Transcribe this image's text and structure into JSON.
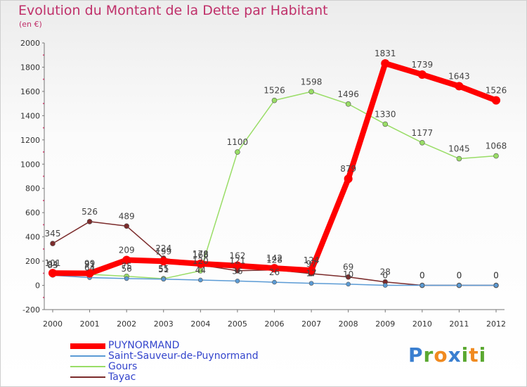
{
  "title": "Evolution du Montant de la Dette par Habitant",
  "subtitle": "(en €)",
  "logo": {
    "letters": [
      "P",
      "r",
      "o",
      "x",
      "i",
      "t",
      "i"
    ],
    "colors": [
      "#3a7fd0",
      "#5aa830",
      "#f08a20",
      "#3a7fd0",
      "#5aa830",
      "#f08a20",
      "#5aa830"
    ]
  },
  "chart_data": {
    "type": "line",
    "x": [
      "2000",
      "2001",
      "2002",
      "2003",
      "2004",
      "2005",
      "2006",
      "2007",
      "2008",
      "2009",
      "2010",
      "2011",
      "2012"
    ],
    "ylim": [
      -200,
      2000
    ],
    "yticks": [
      -200,
      0,
      200,
      400,
      600,
      800,
      1000,
      1200,
      1400,
      1600,
      1800,
      2000
    ],
    "grid": false,
    "legend_position": "bottom-left",
    "series": [
      {
        "name": "PUYNORMAND",
        "color": "#ff0000",
        "width": 8,
        "marker": 6,
        "values": [
          101,
          99,
          209,
          199,
          178,
          162,
          142,
          124,
          879,
          1831,
          1739,
          1643,
          1526
        ],
        "labels": [
          "101",
          "99",
          "209",
          "199",
          "178",
          "162",
          "142",
          "124",
          "879",
          "1831",
          "1739",
          "1643",
          "1526"
        ]
      },
      {
        "name": "Saint-Sauveur-de-Puynormand",
        "color": "#5b9bd5",
        "width": 1.5,
        "marker": 3,
        "values": [
          83,
          64,
          56,
          51,
          44,
          36,
          26,
          17,
          10,
          0,
          0,
          0,
          0
        ],
        "labels": [
          "83",
          "64",
          "56",
          "51",
          "44",
          "36",
          "26",
          "17",
          "10",
          "0",
          "0",
          "0",
          "0"
        ]
      },
      {
        "name": "Gours",
        "color": "#99dd66",
        "width": 1.5,
        "marker": 3.5,
        "values": [
          94,
          91,
          75,
          55,
          120,
          1100,
          1526,
          1598,
          1496,
          1330,
          1177,
          1045,
          1068
        ],
        "labels": [
          "94",
          "91",
          "75",
          "55",
          "120",
          "1100",
          "1526",
          "1598",
          "1496",
          "1330",
          "1177",
          "1045",
          "1068"
        ]
      },
      {
        "name": "Tayac",
        "color": "#7b2b2b",
        "width": 1.5,
        "marker": 3.5,
        "values": [
          345,
          526,
          489,
          224,
          168,
          121,
          128,
          97,
          69,
          28,
          0,
          0,
          0
        ],
        "labels": [
          "345",
          "526",
          "489",
          "224",
          "168",
          "121",
          "128",
          "97",
          "69",
          "28",
          "0",
          "0",
          "0"
        ]
      }
    ]
  }
}
